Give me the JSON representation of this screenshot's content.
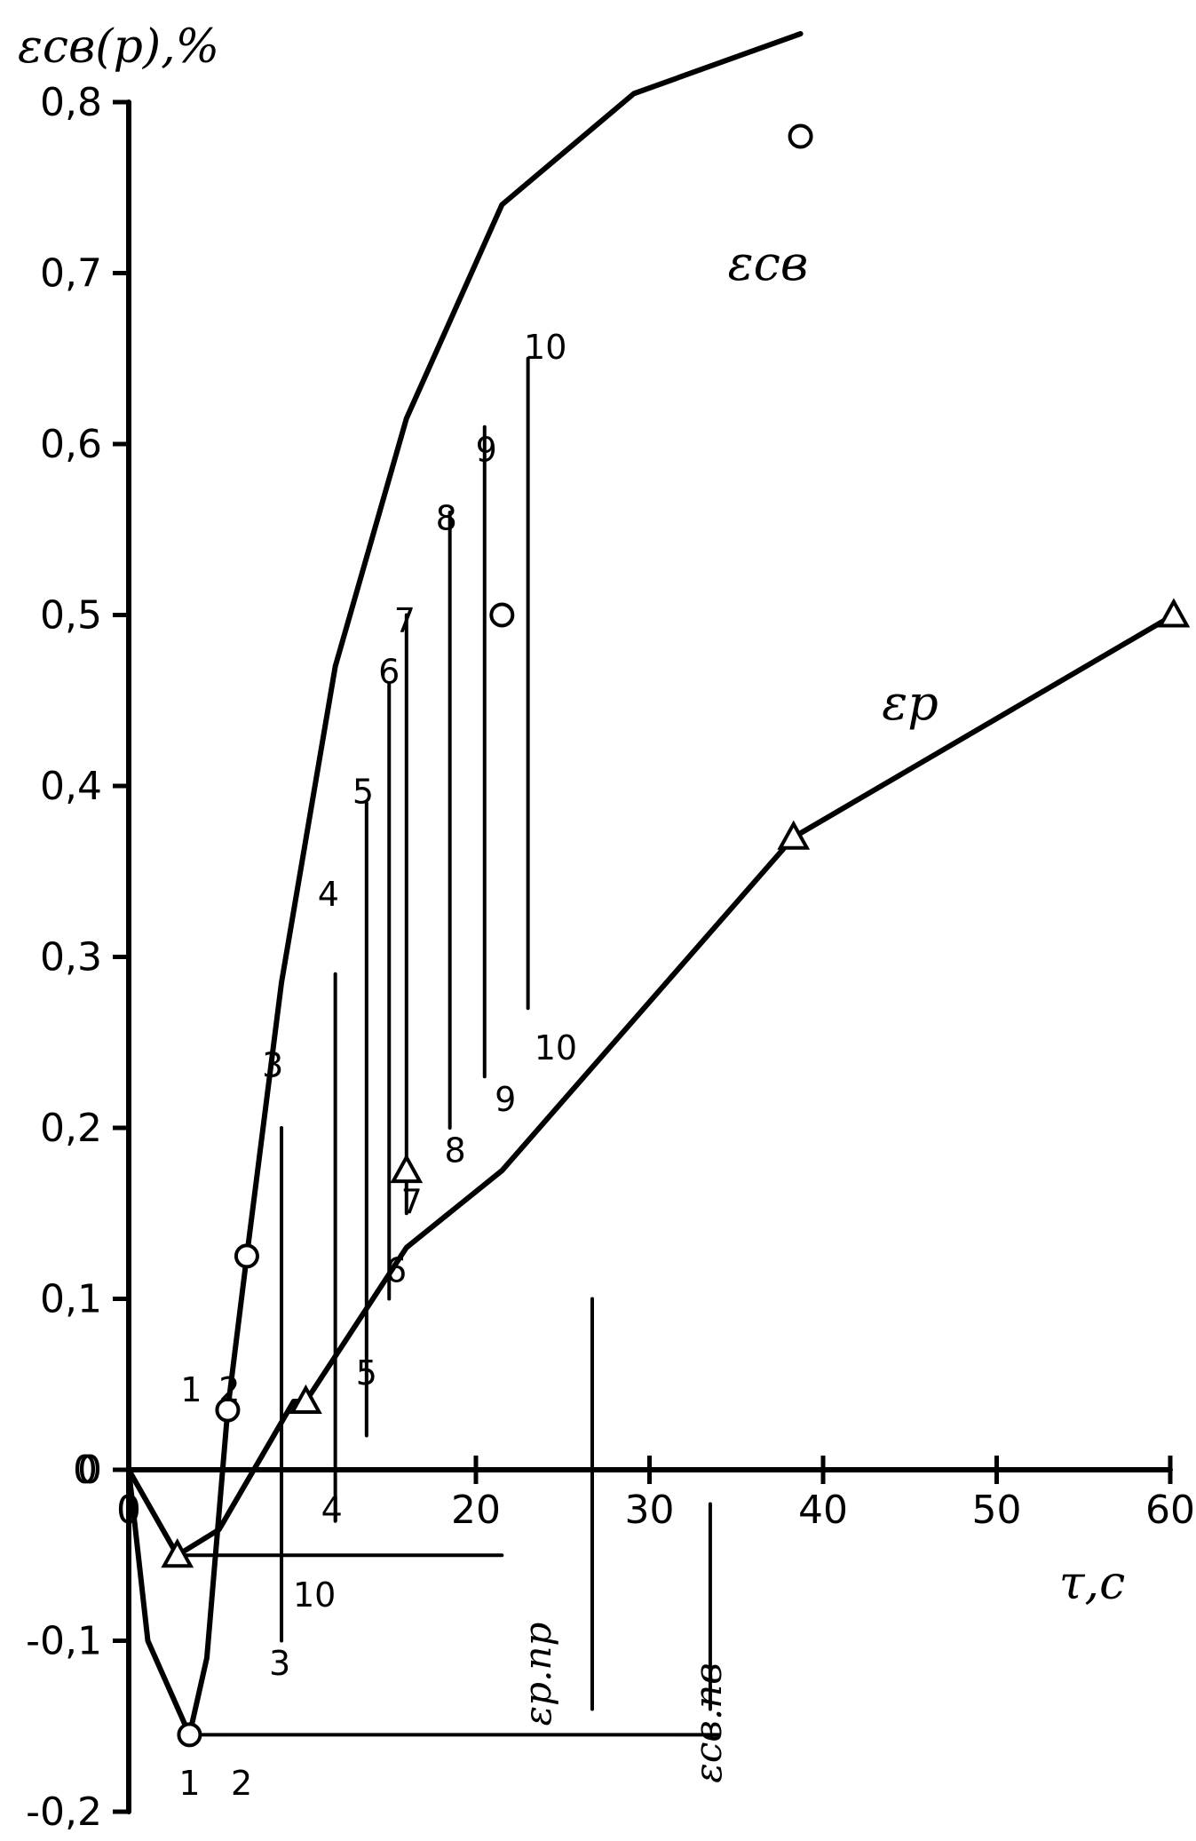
{
  "chart_data": {
    "type": "line",
    "title": "",
    "xlabel": "τ,c",
    "ylabel": "εсв(р),%",
    "xlim": [
      0,
      60
    ],
    "ylim": [
      -0.2,
      0.8
    ],
    "x_ticks": [
      "0",
      "20",
      "30",
      "40",
      "50",
      "60"
    ],
    "y_ticks": [
      "0,8",
      "0,7",
      "0,6",
      "0,5",
      "0,4",
      "0,3",
      "0,2",
      "0,1",
      "0",
      "-0,1",
      "-0,2"
    ],
    "series": [
      {
        "name": "εсв",
        "x": [
          0,
          1.1,
          3.5,
          4.5,
          5.7,
          6.8,
          8.8,
          11.9,
          16.0,
          21.5,
          29.1,
          38.7
        ],
        "y": [
          0,
          -0.1,
          -0.155,
          -0.11,
          0.035,
          0.125,
          0.285,
          0.47,
          0.615,
          0.74,
          0.805,
          0.84
        ]
      },
      {
        "name": "εр",
        "x": [
          0,
          2.8,
          5.2,
          9.5,
          10.2,
          16.0,
          21.5,
          38.3,
          60.2
        ],
        "y": [
          0,
          -0.05,
          -0.035,
          0.04,
          0.04,
          0.13,
          0.175,
          0.37,
          0.5
        ]
      }
    ],
    "annotations": {
      "vertical_numbers_top": [
        "3",
        "4",
        "5",
        "6",
        "7",
        "8",
        "9",
        "10"
      ],
      "vertical_numbers_bottom": [
        "3",
        "4",
        "5",
        "6",
        "7",
        "8",
        "9",
        "10"
      ],
      "left_numbers": [
        "1",
        "2"
      ],
      "bottom_numbers": [
        "1",
        "2"
      ],
      "mid_number": "10",
      "ep_label": "εр.пр",
      "ecb_label": "εсв.пв",
      "zero_label": "0"
    }
  }
}
